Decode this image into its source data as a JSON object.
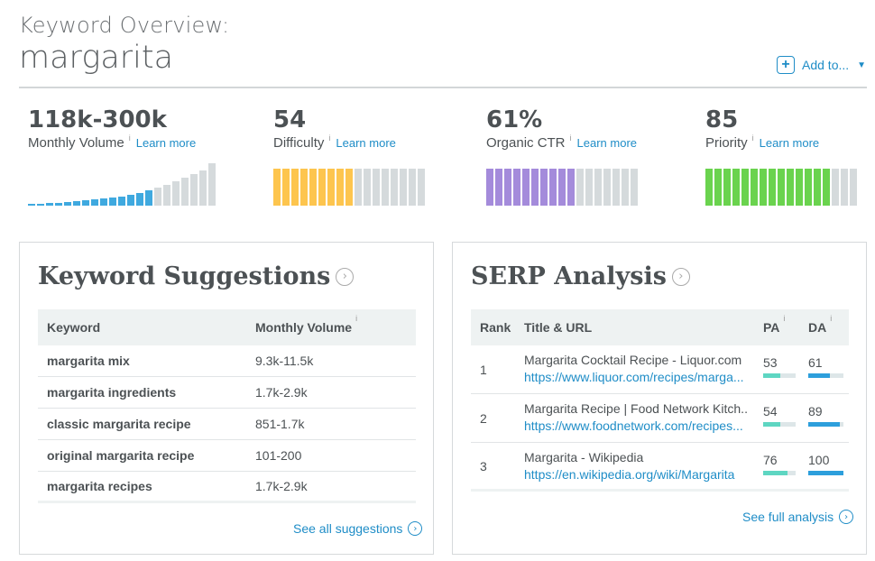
{
  "header": {
    "subtitle": "Keyword Overview:",
    "keyword": "margarita",
    "add_to_label": "Add to..."
  },
  "metrics": {
    "volume": {
      "value": "118k-300k",
      "label": "Monthly Volume",
      "info": "i",
      "learn": "Learn more"
    },
    "difficulty": {
      "value": "54",
      "label": "Difficulty",
      "info": "i",
      "learn": "Learn more",
      "filled_fraction": 0.54,
      "color": "#fdc54e"
    },
    "ctr": {
      "value": "61%",
      "label": "Organic CTR",
      "info": "i",
      "learn": "Learn more",
      "filled_fraction": 0.61,
      "color": "#a48bdb"
    },
    "priority": {
      "value": "85",
      "label": "Priority",
      "info": "i",
      "learn": "Learn more",
      "filled_fraction": 0.85,
      "color": "#6ad34e"
    },
    "volume_bars_highlighted": 14,
    "volume_bars_total": 21
  },
  "suggestions": {
    "title": "Keyword Suggestions",
    "col_keyword": "Keyword",
    "col_volume": "Monthly Volume",
    "info": "i",
    "rows": [
      {
        "keyword": "margarita mix",
        "volume": "9.3k-11.5k"
      },
      {
        "keyword": "margarita ingredients",
        "volume": "1.7k-2.9k"
      },
      {
        "keyword": "classic margarita recipe",
        "volume": "851-1.7k"
      },
      {
        "keyword": "original margarita recipe",
        "volume": "101-200"
      },
      {
        "keyword": "margarita recipes",
        "volume": "1.7k-2.9k"
      }
    ],
    "see_all": "See all suggestions"
  },
  "serp": {
    "title": "SERP Analysis",
    "col_rank": "Rank",
    "col_title": "Title & URL",
    "col_pa": "PA",
    "col_da": "DA",
    "info": "i",
    "rows": [
      {
        "rank": "1",
        "title": "Margarita Cocktail Recipe - Liquor.com",
        "url": "https://www.liquor.com/recipes/marga...",
        "pa": "53",
        "da": "61"
      },
      {
        "rank": "2",
        "title": "Margarita Recipe | Food Network Kitch...",
        "url": "https://www.foodnetwork.com/recipes...",
        "pa": "54",
        "da": "89"
      },
      {
        "rank": "3",
        "title": "Margarita - Wikipedia",
        "url": "https://en.wikipedia.org/wiki/Margarita",
        "pa": "76",
        "da": "100"
      }
    ],
    "see_full": "See full analysis",
    "pa_color": "#5ed6c2",
    "da_color": "#2d9fdc"
  }
}
